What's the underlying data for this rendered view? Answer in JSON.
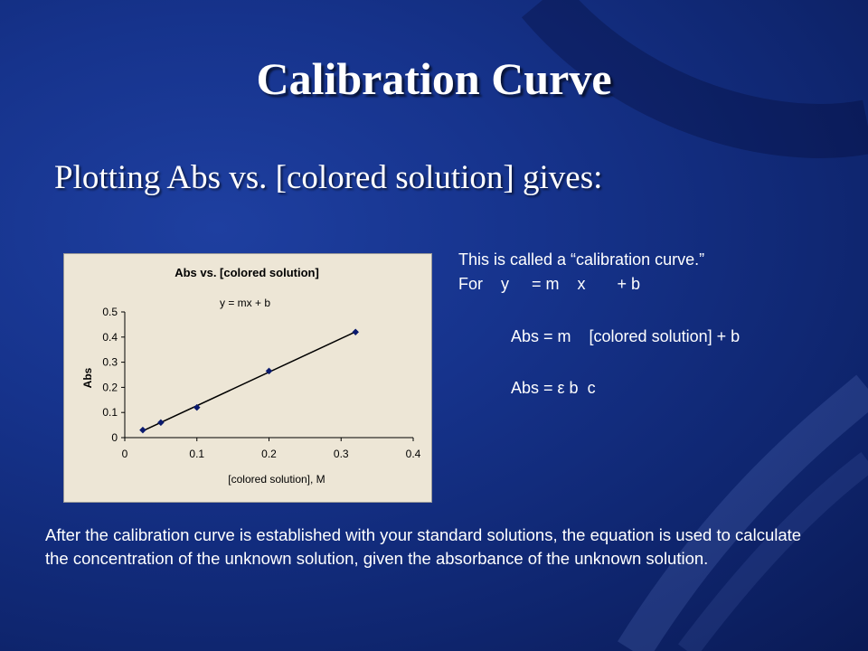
{
  "slide": {
    "title": "Calibration Curve",
    "subtitle": "Plotting Abs vs. [colored solution] gives:",
    "side_text": {
      "line1": "This is called a “calibration curve.”",
      "line2": "For    y     = m    x       + b",
      "line3": "Abs = m    [colored solution] + b",
      "line4": "Abs = ε b  c"
    },
    "footer": "After the calibration curve is established with your standard solutions, the equation is used to calculate the concentration of the unknown solution, given the absorbance of the unknown solution."
  },
  "chart_data": {
    "type": "scatter",
    "title": "Abs vs. [colored solution]",
    "annotation": "y = mx + b",
    "xlabel": "[colored solution], M",
    "ylabel": "Abs",
    "xlim": [
      0,
      0.4
    ],
    "ylim": [
      0,
      0.5
    ],
    "x_ticks": [
      "0",
      "0.1",
      "0.2",
      "0.3",
      "0.4"
    ],
    "y_ticks": [
      "0",
      "0.1",
      "0.2",
      "0.3",
      "0.4",
      "0.5"
    ],
    "grid": false,
    "trendline": true,
    "points": [
      {
        "x": 0.025,
        "y": 0.03
      },
      {
        "x": 0.05,
        "y": 0.06
      },
      {
        "x": 0.1,
        "y": 0.12
      },
      {
        "x": 0.2,
        "y": 0.265
      },
      {
        "x": 0.32,
        "y": 0.42
      }
    ],
    "colors": {
      "points": "#0a1a6e",
      "line": "#000000",
      "background": "#ede6d6"
    }
  }
}
